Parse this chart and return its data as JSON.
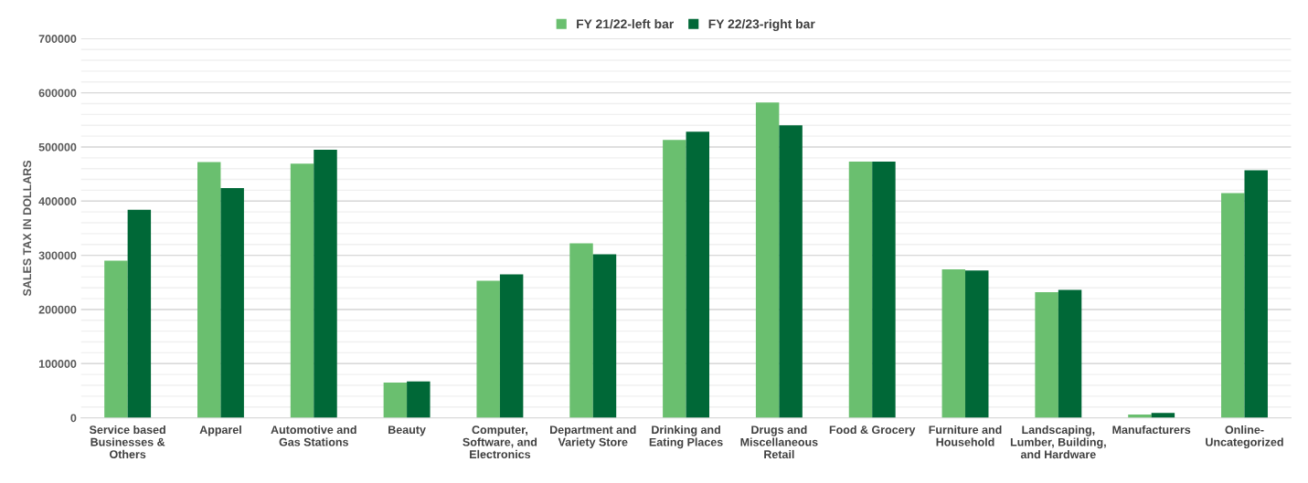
{
  "chart_data": {
    "type": "bar",
    "ylabel": "SALES TAX IN DOLLARS",
    "categories": [
      "Service based Businesses & Others",
      "Apparel",
      "Automotive and Gas Stations",
      "Beauty",
      "Computer, Software, and Electronics",
      "Department and Variety Store",
      "Drinking and Eating Places",
      "Drugs and Miscellaneous Retail",
      "Food & Grocery",
      "Furniture and Household",
      "Landscaping, Lumber, Building, and Hardware",
      "Manufacturers",
      "Online-Uncategorized"
    ],
    "series": [
      {
        "name": "FY 21/22-left bar",
        "color": "#6abf6f",
        "values": [
          290000,
          472000,
          469000,
          65000,
          253000,
          322000,
          513000,
          582000,
          473000,
          274000,
          232000,
          6000,
          415000
        ]
      },
      {
        "name": "FY 22/23-right bar",
        "color": "#006837",
        "values": [
          384000,
          424000,
          495000,
          67000,
          265000,
          302000,
          528000,
          540000,
          473000,
          272000,
          236000,
          9000,
          457000
        ]
      }
    ],
    "ylim": [
      0,
      700000
    ],
    "yticks": [
      0,
      100000,
      200000,
      300000,
      400000,
      500000,
      600000,
      700000
    ],
    "grid": "y",
    "legend": "top"
  }
}
